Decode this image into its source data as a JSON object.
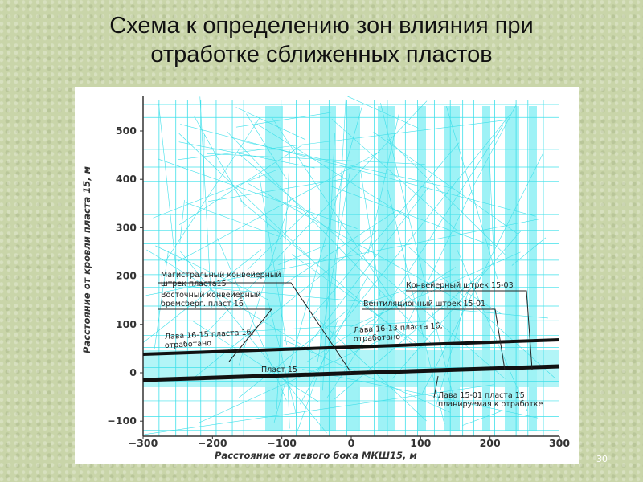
{
  "header": {
    "title": [
      "Схема к определению зон влияния при",
      "отработке сближенных пластов"
    ]
  },
  "figure": {
    "y_axis_title": "Расстояние от кровли пласта 15, м",
    "x_axis_title": "Расстояние от левого бока МКШ15, м",
    "y_ticks": [
      "500",
      "400",
      "300",
      "200",
      "100",
      "0",
      "−100"
    ],
    "x_ticks": [
      "−300",
      "−200",
      "−100",
      "0",
      "100",
      "200",
      "300"
    ],
    "annotations": [
      [
        "Магистральный конвейерный",
        "штрек пласта15"
      ],
      [
        "Восточный конвейерный",
        "бремсберг. пласт 16"
      ],
      [
        "Лава 16-15 пласта 16,",
        "отработано"
      ],
      [
        "Лава 16-13 пласта 16,",
        "отработано"
      ],
      [
        "Пласт 15"
      ],
      [
        "Конвейерный штрек 15-03"
      ],
      [
        "Вентиляционный штрек 15-01"
      ],
      [
        "Лава 15-01 пласта 15,",
        "планируемая к отработке"
      ]
    ]
  },
  "page_number": "30"
}
